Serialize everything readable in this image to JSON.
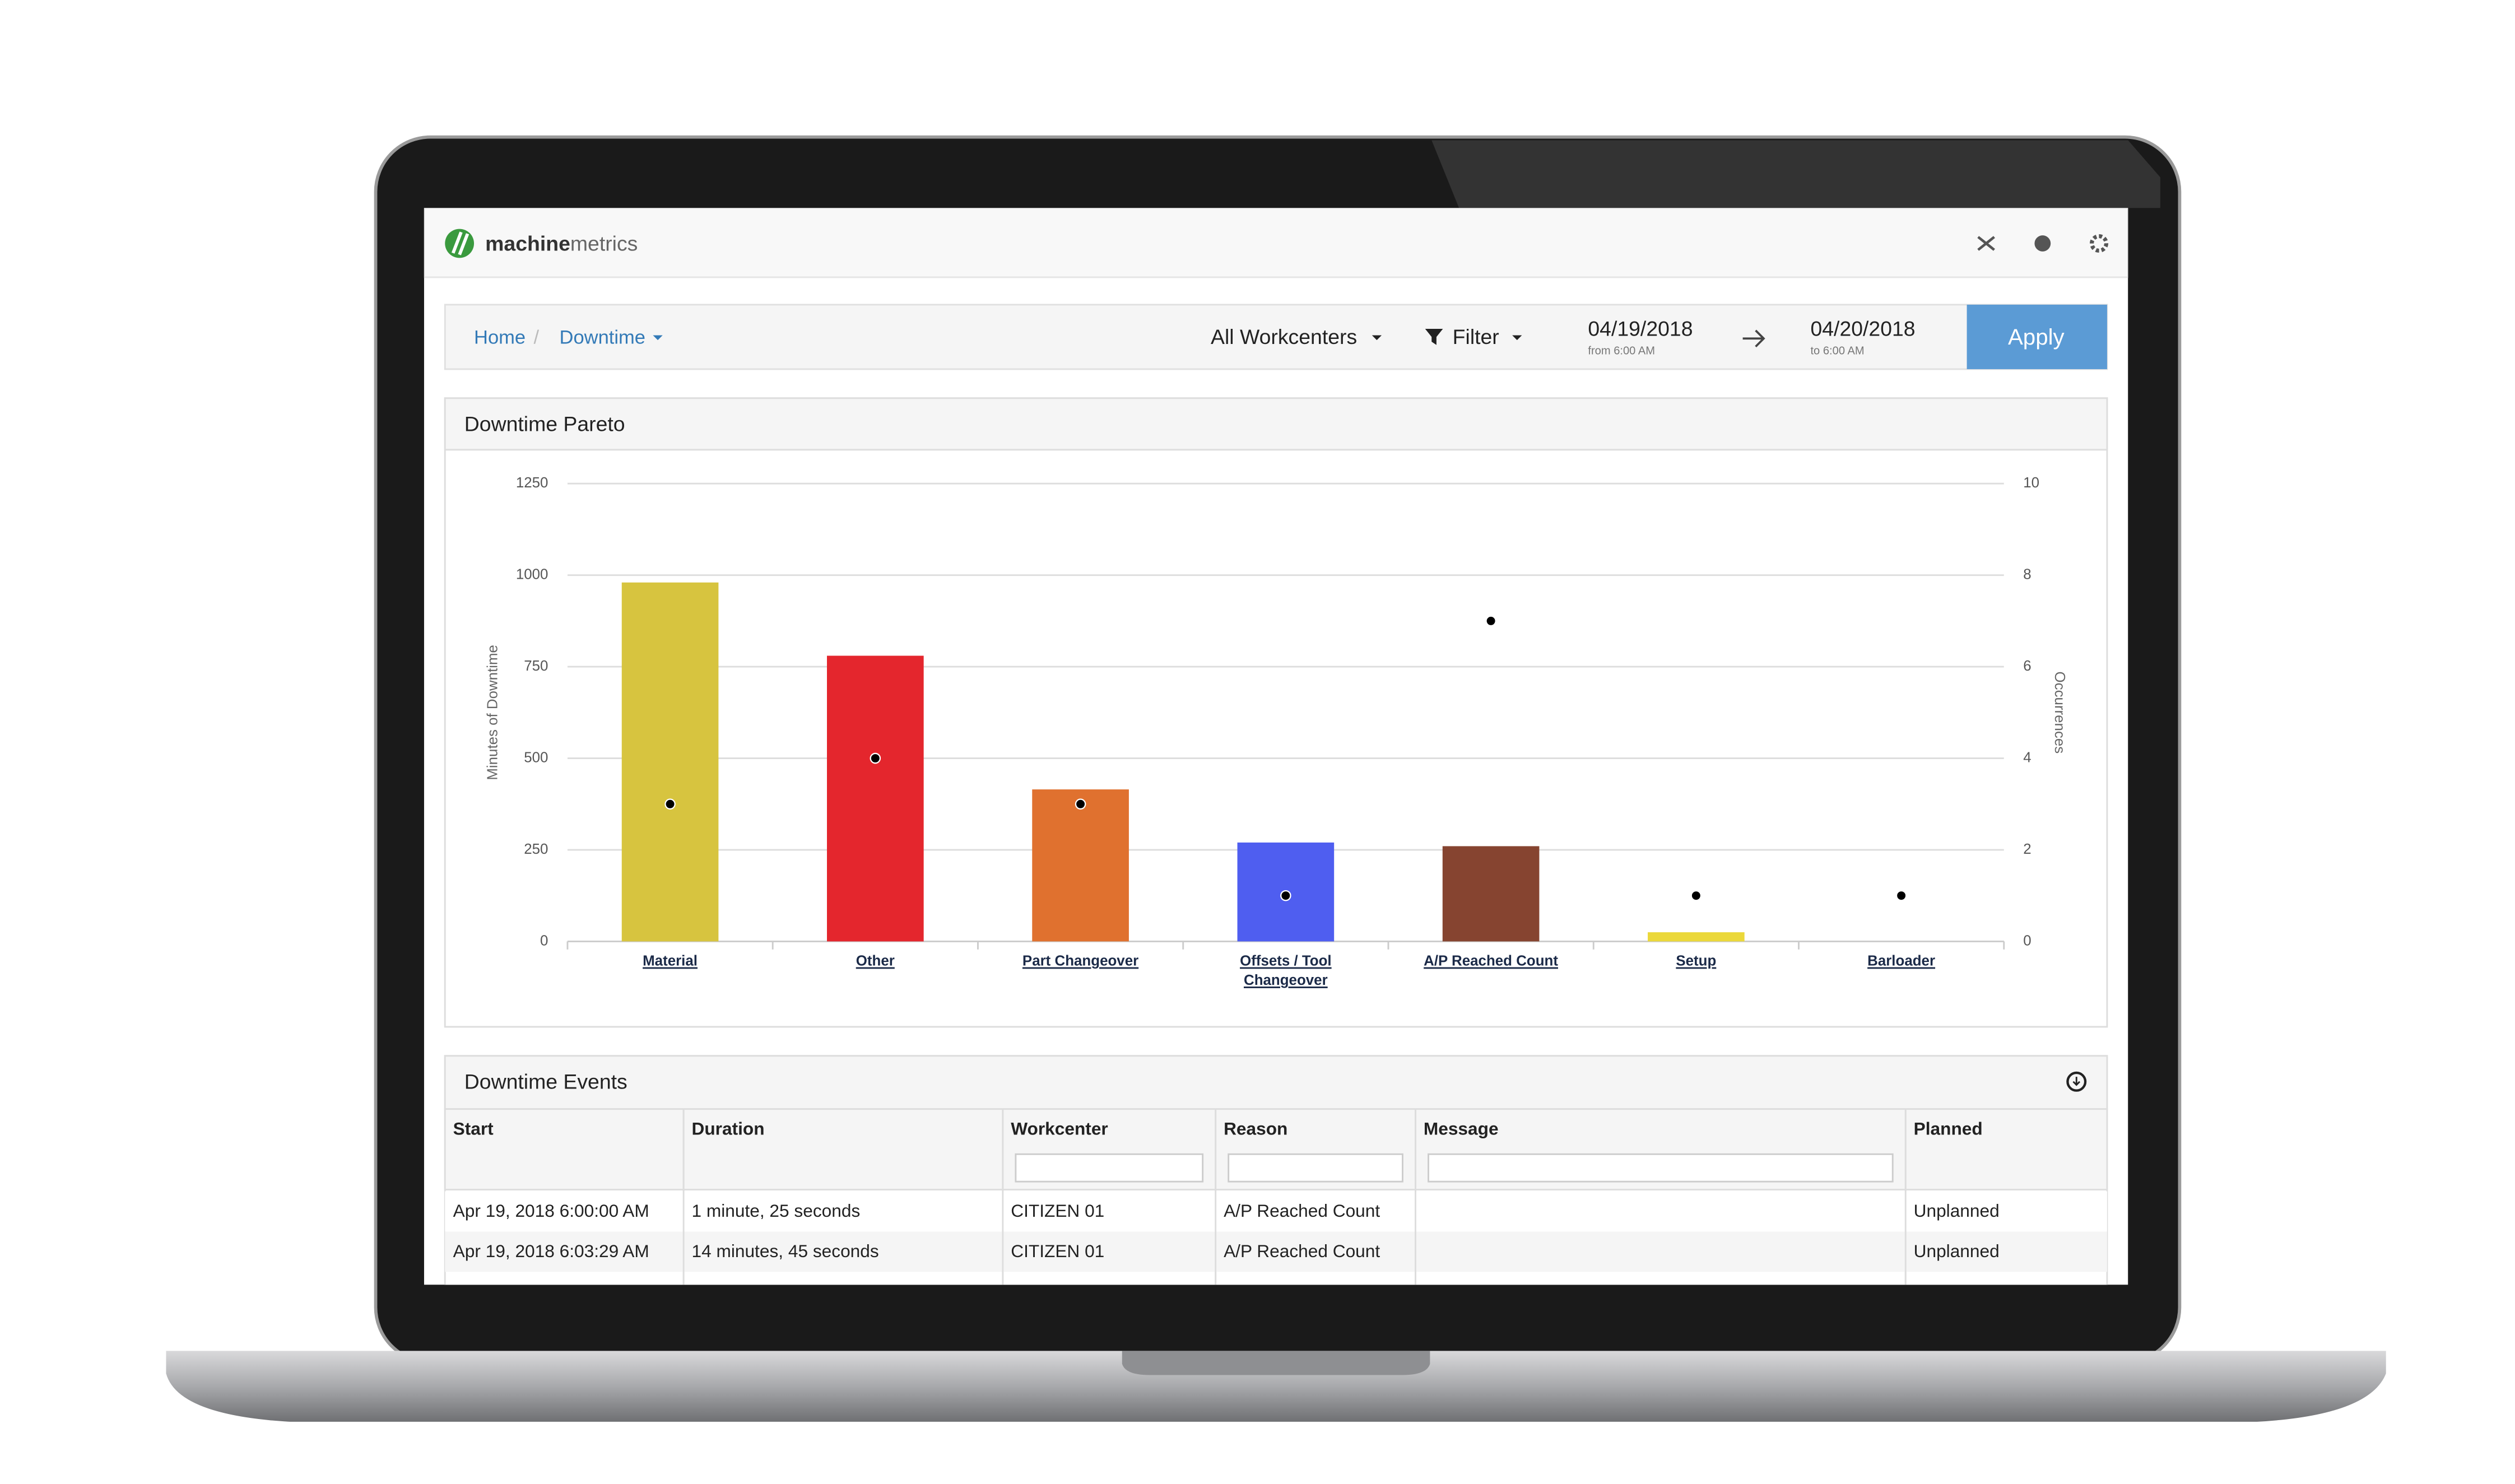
{
  "app": {
    "brand_bold": "machine",
    "brand_light": "metrics"
  },
  "breadcrumb": [
    "Home",
    "Downtime"
  ],
  "toolbar": {
    "workcenters": "All Workcenters",
    "filter": "Filter",
    "from_date": "04/19/2018",
    "from_time": "from 6:00 AM",
    "to_date": "04/20/2018",
    "to_time": "to 6:00 AM",
    "apply": "Apply"
  },
  "chart_panel": {
    "title": "Downtime Pareto"
  },
  "chart_data": {
    "type": "bar",
    "categories": [
      "Material",
      "Other",
      "Part Changeover",
      "Offsets / Tool Changeover",
      "A/P Reached Count",
      "Setup",
      "Barloader"
    ],
    "series": [
      {
        "type": "bar",
        "values": [
          980,
          780,
          415,
          270,
          260,
          25,
          0
        ],
        "colors": [
          "#d7c43f",
          "#e4262d",
          "#e0712f",
          "#4f5ef0",
          "#864430",
          "#ebd83a",
          "#999999"
        ]
      },
      {
        "type": "scatter",
        "axis": "y2",
        "color": "#000000",
        "values": [
          3,
          4,
          3,
          1,
          7,
          1,
          1
        ]
      }
    ],
    "y_label": "Minutes of Downtime",
    "y2_label": "Occurrences",
    "ylim": [
      0,
      1250
    ],
    "yticks": [
      0,
      250,
      500,
      750,
      1000,
      1250
    ],
    "y2lim": [
      0,
      10
    ],
    "y2ticks": [
      0,
      2,
      4,
      6,
      8,
      10
    ],
    "grid": true
  },
  "events_panel": {
    "title": "Downtime Events"
  },
  "table": {
    "columns": [
      "Start",
      "Duration",
      "Workcenter",
      "Reason",
      "Message",
      "Planned"
    ],
    "rows": [
      [
        "Apr 19, 2018 6:00:00 AM",
        "1 minute, 25 seconds",
        "CITIZEN 01",
        "A/P Reached Count",
        "",
        "Unplanned"
      ],
      [
        "Apr 19, 2018 6:03:29 AM",
        "14 minutes, 45 seconds",
        "CITIZEN 01",
        "A/P Reached Count",
        "",
        "Unplanned"
      ]
    ]
  }
}
